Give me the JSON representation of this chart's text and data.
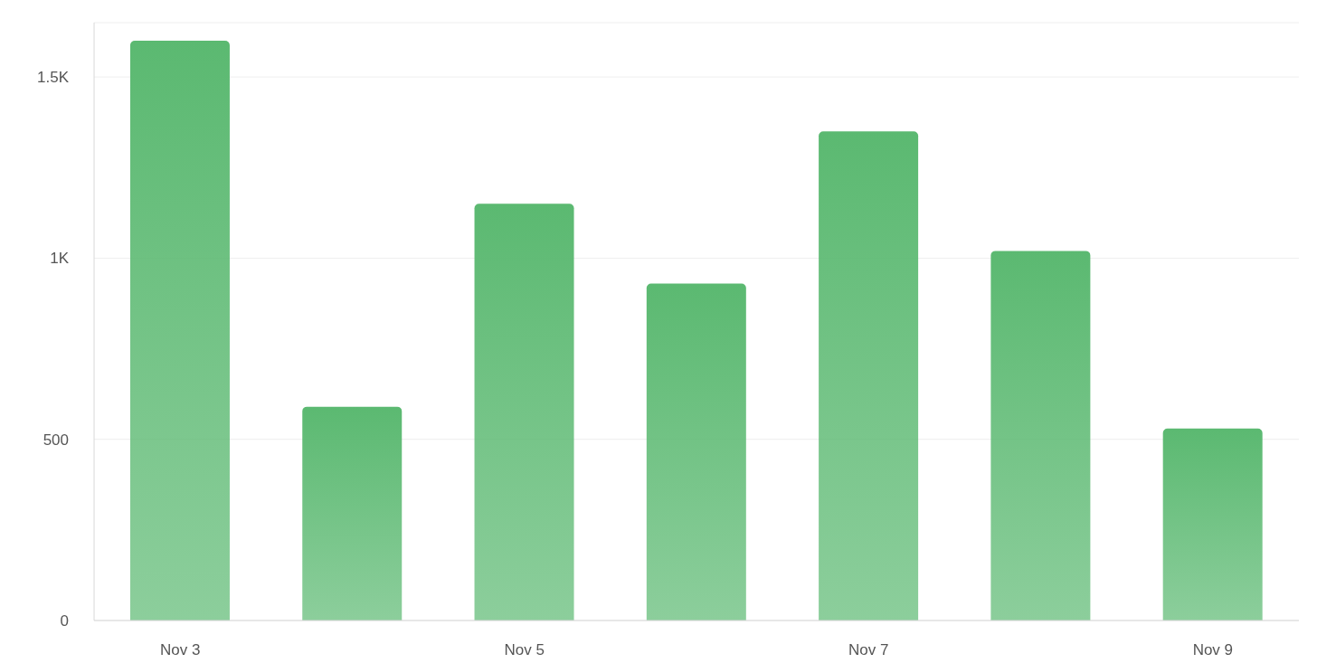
{
  "chart_data": {
    "type": "bar",
    "categories": [
      "Nov 3",
      null,
      "Nov 5",
      null,
      "Nov 7",
      null,
      "Nov 9"
    ],
    "values": [
      1600,
      590,
      1150,
      930,
      1350,
      1020,
      530
    ],
    "color": "#5bb971",
    "ylim": [
      0,
      1650
    ],
    "yticks": [
      0,
      500,
      {
        "value": 1000,
        "label": "1K"
      },
      {
        "value": 1500,
        "label": "1.5K"
      }
    ],
    "grid": "y",
    "legend": false
  }
}
